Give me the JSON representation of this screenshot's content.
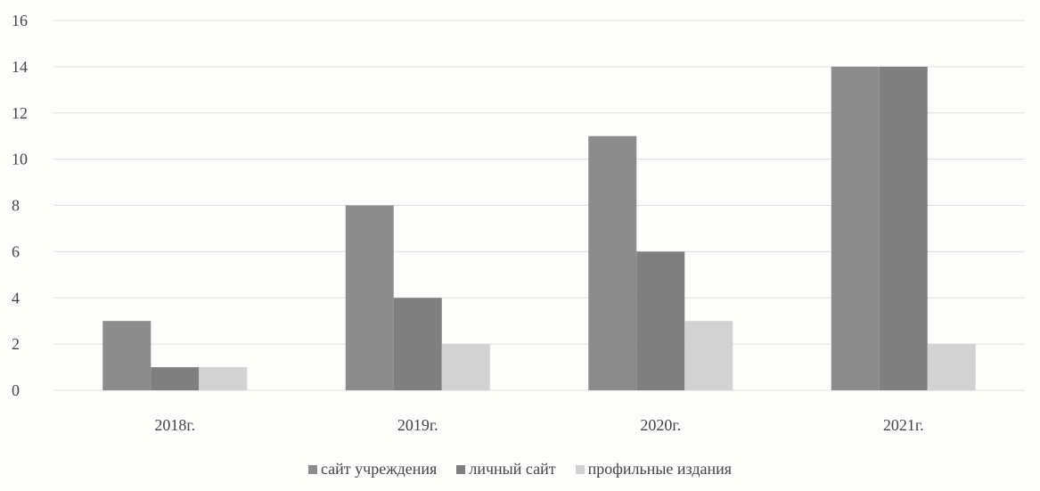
{
  "chart_data": {
    "type": "bar",
    "categories": [
      "2018г.",
      "2019г.",
      "2020г.",
      "2021г."
    ],
    "series": [
      {
        "name": "сайт учреждения",
        "values": [
          3,
          8,
          11,
          14
        ],
        "color": "#8c8c8c"
      },
      {
        "name": "личный сайт",
        "values": [
          1,
          4,
          6,
          14
        ],
        "color": "#7f7f7f"
      },
      {
        "name": "профильные издания",
        "values": [
          1,
          2,
          3,
          2
        ],
        "color": "#d2d2d2"
      }
    ],
    "y_ticks": [
      "0",
      "2",
      "4",
      "6",
      "8",
      "10",
      "12",
      "14",
      "16"
    ],
    "ylim": [
      0,
      16
    ],
    "grid": true,
    "legend_position": "bottom"
  }
}
